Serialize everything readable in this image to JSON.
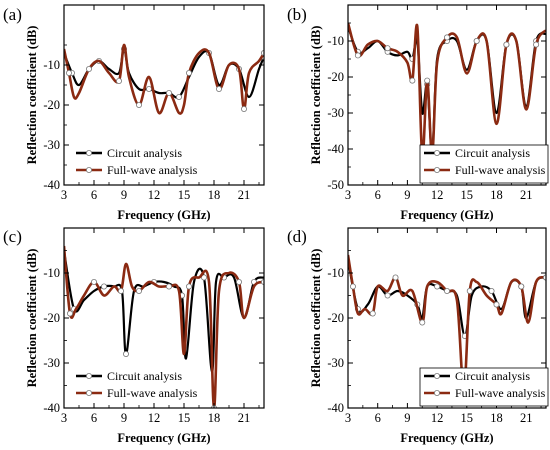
{
  "colors": {
    "circuit": "#000000",
    "full_wave": "#8b2a12",
    "marker_fill": "#ffffff",
    "axis": "#000000"
  },
  "chart_data": [
    {
      "panel": "(a)",
      "type": "line",
      "xlabel": "Frequency (GHz)",
      "ylabel": "Reflection coefficient (dB)",
      "xlim": [
        3,
        23
      ],
      "ylim": [
        -40,
        5
      ],
      "xticks": [
        3,
        6,
        9,
        12,
        15,
        18,
        21
      ],
      "yticks": [
        -40,
        -30,
        -20,
        -10
      ],
      "legend": "bottom-left",
      "series": [
        {
          "name": "Circuit analysis",
          "x": [
            3,
            3.8,
            4.5,
            5.5,
            6.5,
            7.5,
            8.5,
            9.0,
            9.5,
            10.5,
            11.5,
            12.5,
            13.5,
            14.5,
            15.5,
            16.5,
            17.5,
            18.5,
            19.5,
            20.5,
            21.5,
            22.5,
            23
          ],
          "y": [
            -7,
            -12,
            -15,
            -11,
            -9,
            -11,
            -12,
            -6,
            -12,
            -16,
            -16,
            -17,
            -17,
            -18,
            -13,
            -8,
            -7,
            -15,
            -10,
            -11,
            -18,
            -11,
            -8
          ]
        },
        {
          "name": "Full-wave analysis",
          "x": [
            3,
            3.5,
            4.0,
            4.5,
            5.5,
            6.5,
            7.5,
            8.5,
            9.0,
            9.5,
            10.5,
            11.5,
            12.5,
            13.5,
            14.5,
            15.0,
            15.5,
            16.5,
            17.5,
            18.5,
            19.5,
            20.5,
            21.0,
            21.5,
            22.5,
            23
          ],
          "y": [
            -6,
            -12,
            -18,
            -17,
            -11,
            -9,
            -12,
            -14,
            -5,
            -13,
            -20,
            -13,
            -22,
            -17,
            -22,
            -20,
            -12,
            -7,
            -7,
            -16,
            -10,
            -11,
            -21,
            -12,
            -9,
            -7
          ]
        }
      ]
    },
    {
      "panel": "(b)",
      "type": "line",
      "xlabel": "Frequency (GHz)",
      "ylabel": "Reflection coefficient (dB)",
      "xlim": [
        3,
        23
      ],
      "ylim": [
        -50,
        0
      ],
      "xticks": [
        3,
        6,
        9,
        12,
        15,
        18,
        21
      ],
      "yticks": [
        -50,
        -40,
        -30,
        -20,
        -10
      ],
      "legend": "bottom-right",
      "series": [
        {
          "name": "Circuit analysis",
          "x": [
            3,
            4,
            5,
            6,
            7,
            8,
            9,
            9.5,
            10,
            10.5,
            11,
            11.5,
            12,
            13,
            14,
            15,
            16,
            17,
            18,
            19,
            20,
            21,
            22,
            23
          ],
          "y": [
            -6,
            -13,
            -12,
            -10,
            -13,
            -14,
            -13,
            -15,
            -10,
            -30,
            -22,
            -41,
            -15,
            -10,
            -10,
            -18,
            -10,
            -10,
            -30,
            -11,
            -10,
            -28,
            -10,
            -8
          ]
        },
        {
          "name": "Full-wave analysis",
          "x": [
            3,
            4,
            5,
            6,
            7,
            8,
            9,
            9.5,
            10,
            10.5,
            11,
            11.5,
            12,
            13,
            14,
            15,
            16,
            17,
            18,
            19,
            20,
            21,
            22,
            23
          ],
          "y": [
            -5,
            -14,
            -11,
            -10,
            -12,
            -13,
            -16,
            -21,
            -6,
            -42,
            -21,
            -42,
            -16,
            -9,
            -9,
            -19,
            -10,
            -10,
            -33,
            -11,
            -10,
            -29,
            -11,
            -7
          ]
        }
      ]
    },
    {
      "panel": "(c)",
      "type": "line",
      "xlabel": "Frequency (GHz)",
      "ylabel": "Reflection coefficient (dB)",
      "xlim": [
        3,
        23
      ],
      "ylim": [
        -40,
        0
      ],
      "xticks": [
        3,
        6,
        9,
        12,
        15,
        18,
        21
      ],
      "yticks": [
        -40,
        -30,
        -20,
        -10
      ],
      "legend": "bottom-left",
      "series": [
        {
          "name": "Circuit analysis",
          "x": [
            3,
            4,
            5,
            6,
            7,
            8,
            8.8,
            9.2,
            10,
            11,
            12,
            13,
            14,
            14.8,
            15.2,
            16,
            17,
            17.8,
            18.2,
            19,
            20,
            21,
            22,
            23
          ],
          "y": [
            -5,
            -18,
            -16,
            -14,
            -13,
            -13,
            -14,
            -28,
            -14,
            -13,
            -12,
            -12,
            -13,
            -15,
            -29,
            -12,
            -11,
            -32,
            -12,
            -11,
            -11,
            -20,
            -12,
            -11
          ]
        },
        {
          "name": "Full-wave analysis",
          "x": [
            3,
            3.6,
            4.2,
            5,
            6,
            7,
            8,
            8.7,
            9.2,
            9.8,
            10.5,
            11.5,
            12.5,
            13.5,
            14.5,
            15,
            15.5,
            16.5,
            17.5,
            18,
            18.5,
            19.5,
            20.5,
            21,
            22,
            23
          ],
          "y": [
            -4,
            -19,
            -18,
            -15,
            -12,
            -15,
            -13,
            -14,
            -8,
            -13,
            -14,
            -12,
            -13,
            -13,
            -14,
            -28,
            -13,
            -11,
            -12,
            -40,
            -14,
            -10,
            -12,
            -20,
            -13,
            -12
          ]
        }
      ]
    },
    {
      "panel": "(d)",
      "type": "line",
      "xlabel": "Frequency (GHz)",
      "ylabel": "Reflection coefficient (dB)",
      "xlim": [
        3,
        23
      ],
      "ylim": [
        -40,
        0
      ],
      "xticks": [
        3,
        6,
        9,
        12,
        15,
        18,
        21
      ],
      "yticks": [
        -40,
        -30,
        -20,
        -10
      ],
      "legend": "bottom-right",
      "series": [
        {
          "name": "Circuit analysis",
          "x": [
            3,
            4,
            5,
            6,
            7,
            8,
            9,
            10,
            10.5,
            11,
            12,
            13,
            14,
            14.8,
            15.5,
            16.5,
            17.5,
            18.5,
            19.5,
            20.5,
            21,
            22,
            23
          ],
          "y": [
            -7,
            -18,
            -17,
            -13,
            -15,
            -14,
            -15,
            -17,
            -20,
            -13,
            -13,
            -14,
            -15,
            -24,
            -15,
            -13,
            -14,
            -18,
            -12,
            -13,
            -20,
            -12,
            -11
          ]
        },
        {
          "name": "Full-wave analysis",
          "x": [
            3,
            3.5,
            4,
            4.7,
            5.5,
            6,
            7,
            7.8,
            8.5,
            9.5,
            10.5,
            11,
            12,
            13,
            14,
            14.7,
            15.3,
            16,
            17,
            18,
            18.5,
            19.5,
            20.5,
            21.2,
            22,
            23
          ],
          "y": [
            -6,
            -13,
            -19,
            -18,
            -19,
            -13,
            -14,
            -11,
            -15,
            -14,
            -21,
            -13,
            -12,
            -14,
            -16,
            -36,
            -14,
            -12,
            -15,
            -17,
            -19,
            -12,
            -13,
            -21,
            -12,
            -11
          ]
        }
      ]
    }
  ]
}
